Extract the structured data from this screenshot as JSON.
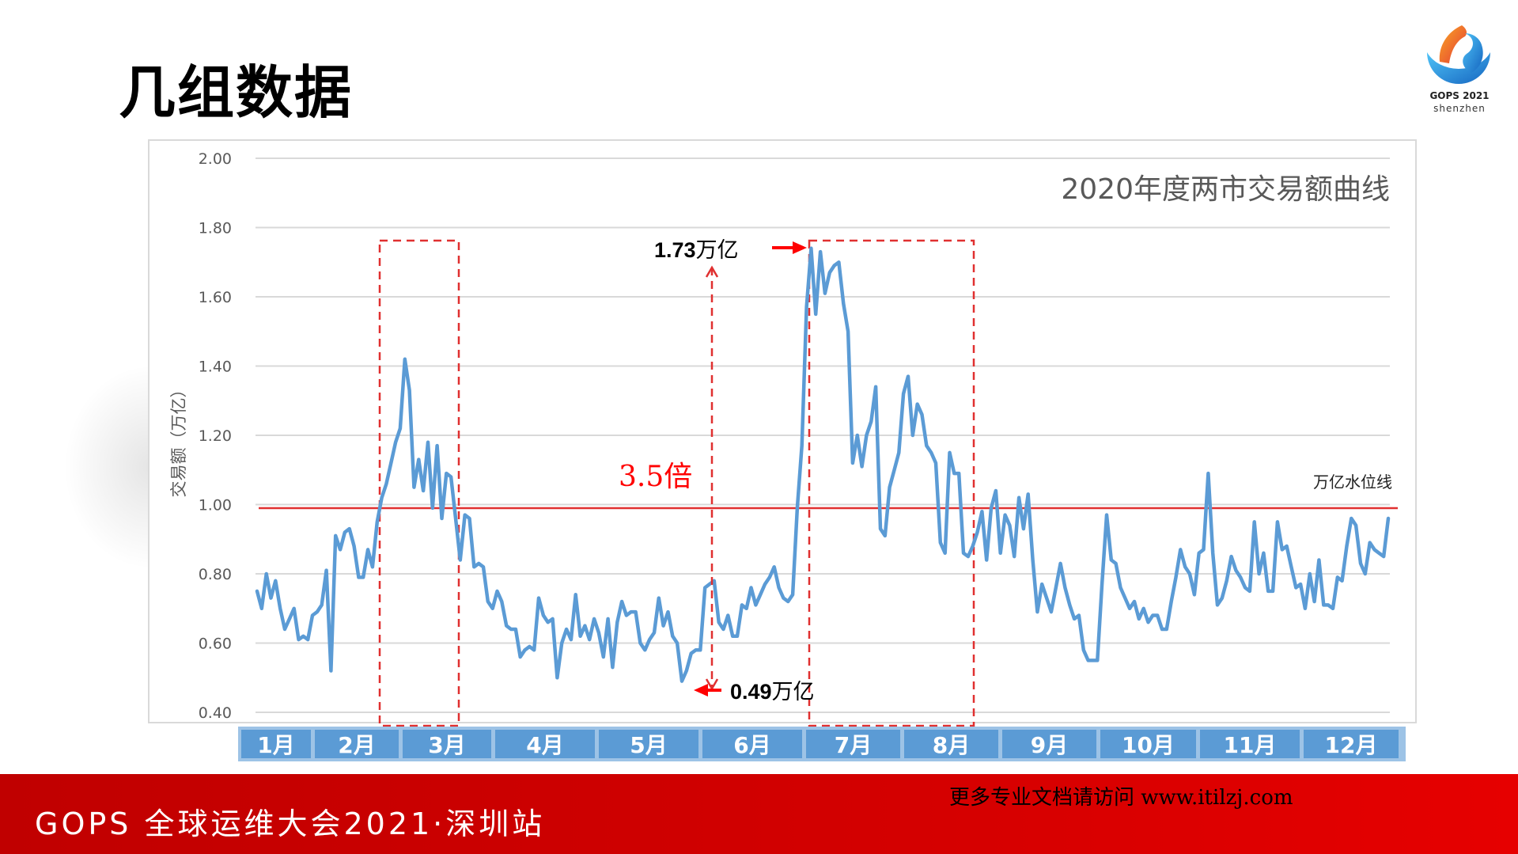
{
  "page": {
    "title": "几组数据",
    "logo": {
      "line1": "GOPS 2021",
      "line2": "shenzhen"
    },
    "footer": {
      "left": "GOPS 全球运维大会2021·深圳站",
      "right": "更多专业文档请访问 www.itilzj.com"
    }
  },
  "colors": {
    "series": "#5b9bd5",
    "waterline": "#e03030",
    "annotation": "#ff0000",
    "month_bar_bg": "#9dc3e6",
    "month_cell": "#5b9bd5",
    "footer_red": "#c00000",
    "grid": "#d9d9d9"
  },
  "chart_data": {
    "type": "line",
    "title": "2020年度两市交易额曲线",
    "xlabel": "",
    "ylabel": "交易额（万亿）",
    "ylim": [
      0.4,
      2.0
    ],
    "yticks": [
      "2.00",
      "1.80",
      "1.60",
      "1.40",
      "1.20",
      "1.00",
      "0.80",
      "0.60",
      "0.40"
    ],
    "categories": [
      "1月",
      "2月",
      "3月",
      "4月",
      "5月",
      "6月",
      "7月",
      "8月",
      "9月",
      "10月",
      "11月",
      "12月"
    ],
    "grid": true,
    "legend": "none",
    "reference_line": {
      "value": 0.99,
      "label": "万亿水位线"
    },
    "annotations": {
      "max_label_value": "1.73",
      "max_label_unit": "万亿",
      "min_label_value": "0.49",
      "min_label_unit": "万亿",
      "ratio_label": "3.5倍",
      "highlight_boxes": [
        "2月下旬-3月上旬",
        "7月-8月"
      ]
    },
    "series": [
      {
        "name": "两市交易额（万亿）",
        "values": [
          0.75,
          0.7,
          0.8,
          0.73,
          0.78,
          0.7,
          0.64,
          0.67,
          0.7,
          0.61,
          0.62,
          0.61,
          0.68,
          0.69,
          0.71,
          0.81,
          0.52,
          0.91,
          0.87,
          0.92,
          0.93,
          0.88,
          0.79,
          0.79,
          0.87,
          0.82,
          0.95,
          1.02,
          1.06,
          1.12,
          1.18,
          1.22,
          1.42,
          1.33,
          1.05,
          1.13,
          1.04,
          1.18,
          0.99,
          1.17,
          0.96,
          1.09,
          1.08,
          0.96,
          0.84,
          0.97,
          0.96,
          0.82,
          0.83,
          0.82,
          0.72,
          0.7,
          0.75,
          0.72,
          0.65,
          0.64,
          0.64,
          0.56,
          0.58,
          0.59,
          0.58,
          0.73,
          0.68,
          0.66,
          0.67,
          0.5,
          0.6,
          0.64,
          0.61,
          0.74,
          0.62,
          0.65,
          0.61,
          0.67,
          0.63,
          0.56,
          0.67,
          0.53,
          0.66,
          0.72,
          0.68,
          0.69,
          0.69,
          0.6,
          0.58,
          0.61,
          0.63,
          0.73,
          0.65,
          0.69,
          0.62,
          0.6,
          0.49,
          0.52,
          0.57,
          0.58,
          0.58,
          0.76,
          0.77,
          0.78,
          0.66,
          0.64,
          0.68,
          0.62,
          0.62,
          0.71,
          0.7,
          0.76,
          0.71,
          0.74,
          0.77,
          0.79,
          0.82,
          0.76,
          0.73,
          0.72,
          0.74,
          0.99,
          1.17,
          1.57,
          1.74,
          1.55,
          1.73,
          1.61,
          1.67,
          1.69,
          1.7,
          1.58,
          1.5,
          1.12,
          1.2,
          1.11,
          1.2,
          1.24,
          1.34,
          0.93,
          0.91,
          1.05,
          1.1,
          1.15,
          1.32,
          1.37,
          1.2,
          1.29,
          1.26,
          1.17,
          1.15,
          1.12,
          0.89,
          0.86,
          1.15,
          1.09,
          1.09,
          0.86,
          0.85,
          0.88,
          0.92,
          0.98,
          0.84,
          0.99,
          1.04,
          0.86,
          0.97,
          0.94,
          0.85,
          1.02,
          0.93,
          1.03,
          0.84,
          0.69,
          0.77,
          0.73,
          0.69,
          0.76,
          0.83,
          0.76,
          0.71,
          0.67,
          0.68,
          0.58,
          0.55,
          0.55,
          0.55,
          0.77,
          0.97,
          0.84,
          0.83,
          0.76,
          0.73,
          0.7,
          0.72,
          0.67,
          0.7,
          0.66,
          0.68,
          0.68,
          0.64,
          0.64,
          0.72,
          0.79,
          0.87,
          0.82,
          0.8,
          0.74,
          0.86,
          0.87,
          1.09,
          0.86,
          0.71,
          0.73,
          0.78,
          0.85,
          0.81,
          0.79,
          0.76,
          0.75,
          0.95,
          0.8,
          0.86,
          0.75,
          0.75,
          0.95,
          0.87,
          0.88,
          0.82,
          0.76,
          0.77,
          0.7,
          0.8,
          0.72,
          0.84,
          0.71,
          0.71,
          0.7,
          0.79,
          0.78,
          0.88,
          0.96,
          0.94,
          0.83,
          0.8,
          0.89,
          0.87,
          0.86,
          0.85,
          0.96
        ]
      }
    ]
  }
}
